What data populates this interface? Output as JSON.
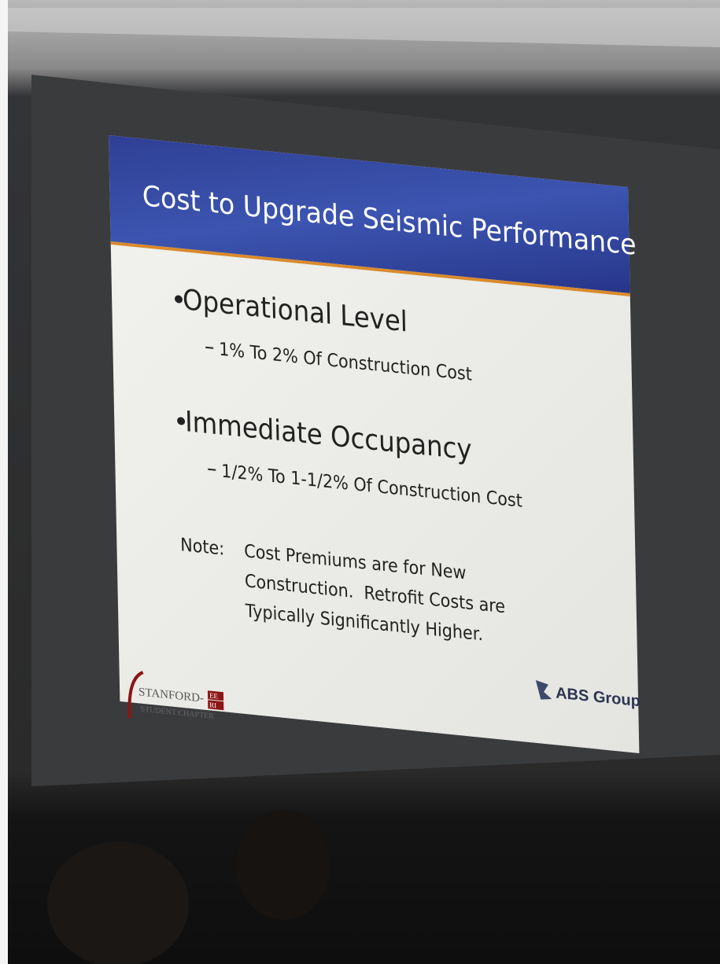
{
  "slide": {
    "title": "Cost to Upgrade Seismic Performance",
    "bullets": [
      {
        "text": "Operational Level",
        "detail": "1% To 2% Of Construction Cost"
      },
      {
        "text": "Immediate Occupancy",
        "detail": "1/2% To 1-1/2% Of Construction Cost"
      }
    ],
    "note": {
      "label": "Note:",
      "lines": [
        "Cost Premiums are for New",
        "Construction.  Retrofit Costs are",
        "Typically Significantly Higher."
      ]
    },
    "logos": {
      "stanford": "STANFORD-",
      "eeri_top": "EE",
      "eeri_bottom": "RI",
      "chapter": "STUDENT CHAPTER",
      "abs": "ABS Group"
    }
  }
}
